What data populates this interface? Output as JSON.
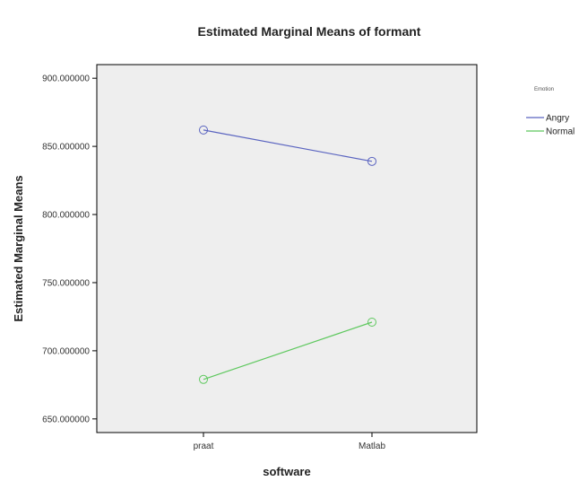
{
  "chart_data": {
    "type": "line",
    "title": "Estimated Marginal Means of formant",
    "xlabel": "software",
    "ylabel": "Estimated Marginal Means",
    "categories": [
      "praat",
      "Matlab"
    ],
    "ylim": [
      640,
      910
    ],
    "yticks": [
      650,
      700,
      750,
      800,
      850,
      900
    ],
    "ytick_labels": [
      "650.000000",
      "700.000000",
      "750.000000",
      "800.000000",
      "850.000000",
      "900.000000"
    ],
    "grid": false,
    "legend": {
      "title": "Emotion",
      "placement": "top-right"
    },
    "series": [
      {
        "name": "Angry",
        "values": [
          862,
          839
        ],
        "color": "#5a64c0"
      },
      {
        "name": "Normal",
        "values": [
          679,
          721
        ],
        "color": "#5ec85e"
      }
    ],
    "colors": {
      "plot_background": "#eeeeee",
      "frame": "#000000"
    }
  }
}
